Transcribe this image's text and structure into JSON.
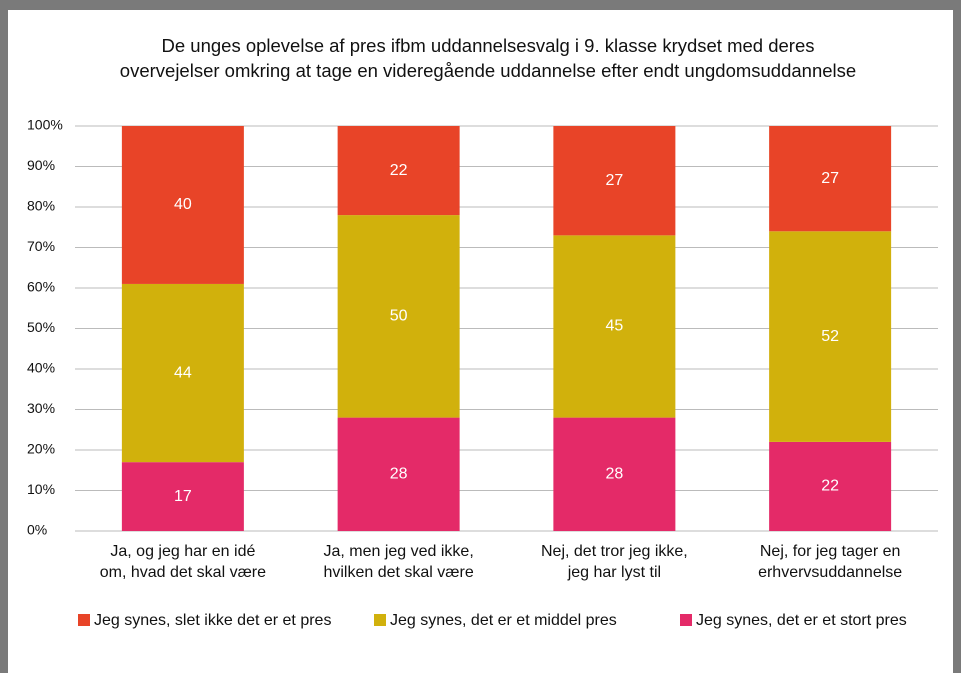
{
  "chart_data": {
    "type": "bar",
    "stacked": true,
    "title": [
      "De unges oplevelse af pres ifbm uddannelsesvalg i 9. klasse krydset med deres",
      "overvejelser omkring at tage en videregående uddannelse efter endt ungdomsuddannelse"
    ],
    "categories": [
      [
        "Ja, og jeg har en idé",
        "om, hvad det skal være"
      ],
      [
        "Ja, men jeg ved ikke,",
        "hvilken det skal være"
      ],
      [
        "Nej, det tror jeg ikke,",
        "jeg har lyst til"
      ],
      [
        "Nej, for jeg tager en",
        "erhvervsuddannelse"
      ]
    ],
    "series": [
      {
        "name": "Jeg synes, det er et stort pres",
        "color": "#e42a68",
        "values": [
          17,
          28,
          28,
          22
        ]
      },
      {
        "name": "Jeg synes, det er et middel pres",
        "color": "#d1b10c",
        "values": [
          44,
          50,
          45,
          52
        ]
      },
      {
        "name": "Jeg synes, slet ikke det er et pres",
        "color": "#e84428",
        "values": [
          40,
          22,
          27,
          27
        ]
      }
    ],
    "legend_order": [
      2,
      1,
      0
    ],
    "ylim": [
      0,
      100
    ],
    "yticks": [
      {
        "value": 0,
        "label": "0%"
      },
      {
        "value": 10,
        "label": "10%"
      },
      {
        "value": 20,
        "label": "20%"
      },
      {
        "value": 30,
        "label": "30%"
      },
      {
        "value": 40,
        "label": "40%"
      },
      {
        "value": 50,
        "label": "50%"
      },
      {
        "value": 60,
        "label": "60%"
      },
      {
        "value": 70,
        "label": "70%"
      },
      {
        "value": 80,
        "label": "80%"
      },
      {
        "value": 90,
        "label": "90%"
      },
      {
        "value": 100,
        "label": "100%"
      }
    ],
    "grid": true
  }
}
